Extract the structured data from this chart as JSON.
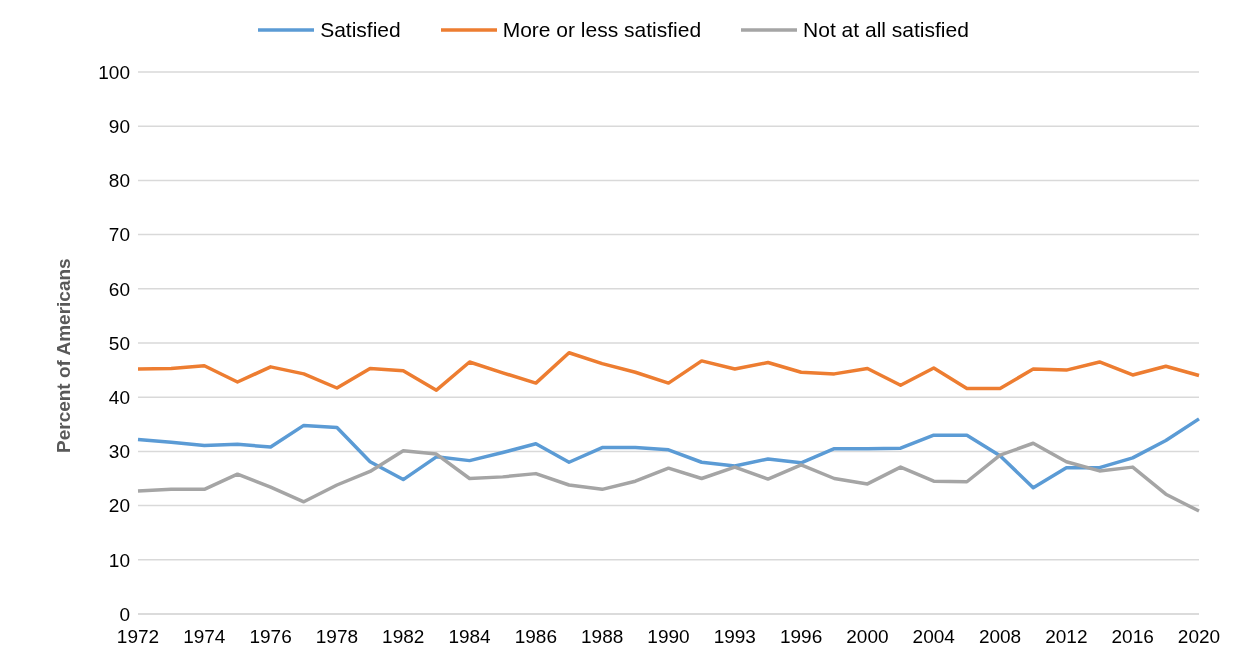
{
  "chart_data": {
    "type": "line",
    "ylabel": "Percent of Americans",
    "categories": [
      "1972",
      null,
      "1974",
      null,
      "1976",
      null,
      "1978",
      null,
      "1982",
      null,
      "1984",
      null,
      "1986",
      null,
      "1988",
      null,
      "1990",
      null,
      "1993",
      null,
      "1996",
      null,
      "2000",
      null,
      "2004",
      null,
      "2008",
      null,
      "2012",
      null,
      "2016",
      null,
      "2020"
    ],
    "series": [
      {
        "name": "Satisfied",
        "color": "#5b9bd5",
        "values": [
          32.2,
          31.7,
          31.1,
          31.3,
          30.8,
          34.8,
          34.4,
          28.1,
          24.8,
          29.0,
          28.3,
          29.8,
          31.4,
          28.0,
          30.7,
          30.7,
          30.3,
          28.0,
          27.3,
          28.6,
          27.9,
          30.5,
          30.5,
          30.6,
          33.0,
          33.0,
          29.2,
          23.3,
          27.0,
          27.0,
          28.8,
          32.0,
          36.0
        ]
      },
      {
        "name": "More or less satisfied",
        "color": "#ed7d31",
        "values": [
          45.2,
          45.3,
          45.8,
          42.8,
          45.6,
          44.3,
          41.7,
          45.3,
          44.9,
          41.3,
          46.5,
          44.5,
          42.6,
          48.2,
          46.2,
          44.6,
          42.6,
          46.7,
          45.2,
          46.4,
          44.6,
          44.3,
          45.3,
          42.2,
          45.4,
          41.6,
          41.6,
          45.2,
          45.0,
          46.5,
          44.1,
          45.7,
          44.0
        ]
      },
      {
        "name": "Not at all satisfied",
        "color": "#a5a5a5",
        "values": [
          22.7,
          23.0,
          23.0,
          25.8,
          23.4,
          20.7,
          23.8,
          26.3,
          30.1,
          29.5,
          25.0,
          25.3,
          25.9,
          23.8,
          23.0,
          24.5,
          26.9,
          25.0,
          27.1,
          24.9,
          27.5,
          25.0,
          24.0,
          27.1,
          24.5,
          24.4,
          29.3,
          31.5,
          28.1,
          26.4,
          27.1,
          22.1,
          19.0
        ]
      }
    ],
    "ylim": [
      0,
      100
    ],
    "yticks": [
      0,
      10,
      20,
      30,
      40,
      50,
      60,
      70,
      80,
      90,
      100
    ],
    "grid": "y",
    "legend": "top",
    "marker": "none"
  }
}
